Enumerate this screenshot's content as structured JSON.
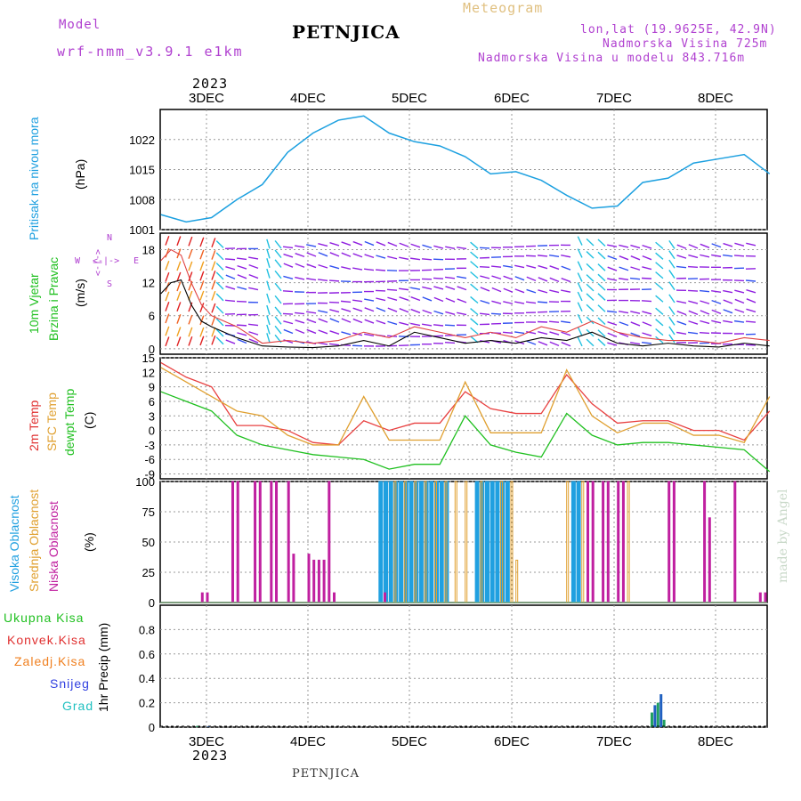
{
  "header": {
    "model_label": "Model",
    "model_name": "wrf-nmm_v3.9.1 e1km",
    "title": "PETNJICA",
    "meteogram_label": "Meteogram",
    "lonlat": "lon,lat (19.9625E, 42.9N)",
    "altitude": "Nadmorska Visina 725m",
    "model_altitude": "Nadmorska Visina u modelu 843.716m",
    "year_top": "2023",
    "year_bottom": "2023",
    "footer_station": "PETNJICA",
    "credit": "made by Angel"
  },
  "colors": {
    "pressure": "#1ca0e0",
    "temp2m": "#e84040",
    "sfc": "#e0a030",
    "dewpt": "#20c020",
    "high_cloud": "#20a0e0",
    "mid_cloud": "#e0a030",
    "low_cloud": "#c020a0",
    "wind_purple": "#9020e0",
    "wind_blue": "#3050f0",
    "wind_cyan": "#20c0e0",
    "gust": "#e04040",
    "precip_total": "#20a060",
    "precip_blue": "#2060c0",
    "label_pressure": "#20a0e0",
    "label_green": "#20c020",
    "label_red": "#e03030",
    "label_orange": "#f08020",
    "label_blue": "#3040e0",
    "label_cyan": "#20c0c0",
    "label_purple": "#b040d0",
    "label_gold": "#e0a030"
  },
  "days": [
    "3DEC",
    "4DEC",
    "5DEC",
    "6DEC",
    "7DEC",
    "8DEC"
  ],
  "compass": {
    "n": "N",
    "w": "W",
    "e": "E",
    "s": "S",
    "arrows": "<-|->"
  },
  "panels": {
    "pressure": {
      "labels": [
        "Pritisak na nivou mora"
      ],
      "unit": "(hPa)"
    },
    "wind": {
      "labels": [
        "10m Vjetar",
        "Brzina i Pravac"
      ],
      "unit": "(m/s)"
    },
    "temp": {
      "labels": [
        "2m Temp",
        "SFC Temp",
        "dewpt Temp"
      ],
      "unit": "(C)"
    },
    "cloud": {
      "labels": [
        "Visoka Oblacnost",
        "Srednja Oblacnost",
        "Niska Oblacnost"
      ],
      "unit": "(%)"
    },
    "precip": {
      "labels": [
        "Ukupna Kisa",
        "Konvek.Kisa",
        "Zaledj.Kisa",
        "Snijeg",
        "Grad"
      ],
      "unit": "1hr Precip (mm)"
    }
  },
  "chart_data": [
    {
      "type": "line",
      "name": "pressure",
      "ylabel": "Pritisak na nivou mora (hPa)",
      "ylim": [
        1001,
        1029
      ],
      "yticks": [
        1001,
        1008,
        1015,
        1022
      ],
      "x_days": [
        0,
        0.25,
        0.5,
        0.75,
        1.0,
        1.25,
        1.5,
        1.75,
        2.0,
        2.25,
        2.5,
        2.75,
        3.0,
        3.25,
        3.5,
        3.75,
        4.0,
        4.25,
        4.5,
        4.75,
        5.0,
        5.25,
        5.5,
        5.75,
        6.0
      ],
      "series": [
        {
          "values": [
            1004.5,
            1002.8,
            1003.8,
            1008.0,
            1011.5,
            1019.0,
            1023.5,
            1026.5,
            1027.5,
            1023.5,
            1021.5,
            1020.5,
            1018.0,
            1014.0,
            1014.5,
            1012.5,
            1009.0,
            1006.0,
            1006.5,
            1012.0,
            1013.0,
            1016.5,
            1017.5,
            1018.5,
            1014.0
          ]
        }
      ]
    },
    {
      "type": "line",
      "name": "wind",
      "ylabel": "10m Vjetar Brzina i Pravac (m/s)",
      "ylim": [
        -1,
        21
      ],
      "yticks": [
        0,
        6,
        12,
        18
      ],
      "x_days": [
        0,
        0.1,
        0.2,
        0.3,
        0.4,
        0.5,
        0.75,
        1.0,
        1.25,
        1.5,
        1.75,
        2.0,
        2.25,
        2.5,
        2.75,
        3.0,
        3.25,
        3.5,
        3.75,
        4.0,
        4.25,
        4.5,
        4.75,
        5.0,
        5.25,
        5.5,
        5.75,
        6.0
      ],
      "series": [
        {
          "values": [
            10,
            12,
            12.5,
            8,
            5,
            4,
            2,
            0.5,
            0.3,
            0.2,
            0.5,
            1.5,
            0.5,
            3,
            2,
            1,
            1.5,
            1,
            2,
            1.5,
            3,
            1,
            0.5,
            1,
            0.5,
            0.3,
            1,
            0.5
          ]
        },
        {
          "values": [
            16,
            18,
            17,
            12,
            8,
            6,
            4,
            1,
            1.5,
            1,
            1.5,
            3,
            2,
            4,
            3,
            2,
            3,
            2,
            4,
            3,
            5,
            3,
            2,
            1.5,
            1.5,
            1,
            2,
            1.5
          ]
        }
      ]
    },
    {
      "type": "line",
      "name": "temperature",
      "ylabel": "(C)",
      "ylim": [
        -10,
        15
      ],
      "yticks": [
        -9,
        -6,
        -3,
        0,
        3,
        6,
        9,
        12,
        15
      ],
      "x_days": [
        0,
        0.25,
        0.5,
        0.75,
        1.0,
        1.25,
        1.5,
        1.75,
        2.0,
        2.25,
        2.5,
        2.75,
        3.0,
        3.25,
        3.5,
        3.75,
        4.0,
        4.25,
        4.5,
        4.75,
        5.0,
        5.25,
        5.5,
        5.75,
        6.0
      ],
      "series": [
        {
          "name": "2m Temp",
          "values": [
            14,
            11,
            9,
            1,
            1,
            0,
            -2.5,
            -3,
            2,
            0,
            1.5,
            1.5,
            8,
            4.5,
            3.5,
            3.5,
            11.5,
            5.5,
            1.5,
            2,
            2,
            0,
            0,
            -2,
            4
          ]
        },
        {
          "name": "SFC Temp",
          "values": [
            13,
            10,
            7,
            4,
            3,
            -1,
            -3,
            -3,
            7,
            -2,
            -2,
            -2,
            10,
            -0.5,
            -0.5,
            -0.5,
            12.5,
            3,
            -0.5,
            1.5,
            1.5,
            -1,
            -1,
            -2.5,
            7
          ]
        },
        {
          "name": "dewpt Temp",
          "values": [
            8,
            6,
            4,
            -1,
            -3,
            -4,
            -5,
            -5.5,
            -6,
            -8,
            -7,
            -7,
            3,
            -3,
            -4.5,
            -5.5,
            3.5,
            -1,
            -3,
            -2.5,
            -2.5,
            -3,
            -3.5,
            -4,
            -8.5
          ]
        }
      ]
    },
    {
      "type": "bar",
      "name": "cloud",
      "ylabel": "(%)",
      "ylim": [
        0,
        100
      ],
      "yticks": [
        0,
        25,
        50,
        75,
        100
      ],
      "series": [
        {
          "name": "Visoka Oblacnost",
          "x_days": [
            2.15,
            2.2,
            2.25,
            2.3,
            2.35,
            2.4,
            2.45,
            2.5,
            2.55,
            2.6,
            2.65,
            2.7,
            2.75,
            2.8,
            3.1,
            3.15,
            3.2,
            3.25,
            3.3,
            3.35,
            3.4,
            4.05,
            4.1
          ],
          "values": [
            100,
            100,
            100,
            100,
            100,
            100,
            100,
            100,
            100,
            100,
            100,
            100,
            100,
            100,
            100,
            100,
            100,
            100,
            100,
            100,
            100,
            100,
            100
          ]
        },
        {
          "name": "Srednja Oblacnost",
          "x_days": [
            2.3,
            2.4,
            2.5,
            2.6,
            2.7,
            2.8,
            2.9,
            3.0,
            3.5,
            3.15,
            3.35,
            3.45,
            4.0,
            4.15,
            4.6
          ],
          "values": [
            100,
            100,
            100,
            100,
            100,
            100,
            100,
            100,
            35,
            100,
            100,
            100,
            100,
            100,
            100
          ]
        },
        {
          "name": "Niska Oblacnost",
          "x_days": [
            0.4,
            0.45,
            0.7,
            0.75,
            0.92,
            0.97,
            1.08,
            1.13,
            1.25,
            1.3,
            1.45,
            1.5,
            1.55,
            1.6,
            1.65,
            1.7,
            2.2,
            4.2,
            4.25,
            4.35,
            4.4,
            4.5,
            4.55,
            5.0,
            5.05,
            5.35,
            5.4,
            5.65,
            5.9,
            5.95
          ],
          "values": [
            8,
            8,
            100,
            100,
            100,
            100,
            100,
            100,
            100,
            40,
            40,
            35,
            35,
            35,
            100,
            8,
            8,
            100,
            100,
            100,
            100,
            100,
            100,
            100,
            100,
            100,
            70,
            100,
            8,
            8
          ]
        }
      ]
    },
    {
      "type": "bar",
      "name": "precip",
      "ylabel": "1hr Precip (mm)",
      "ylim": [
        0,
        1.0
      ],
      "yticks": [
        0,
        0.2,
        0.4,
        0.6,
        0.8
      ],
      "series": [
        {
          "name": "Ukupna Kisa",
          "x_days": [
            0.36,
            0.47,
            4.84,
            4.87,
            4.9,
            4.93,
            4.96
          ],
          "values": [
            0.01,
            0.005,
            0.12,
            0.18,
            0.2,
            0.27,
            0.06
          ]
        }
      ]
    }
  ]
}
